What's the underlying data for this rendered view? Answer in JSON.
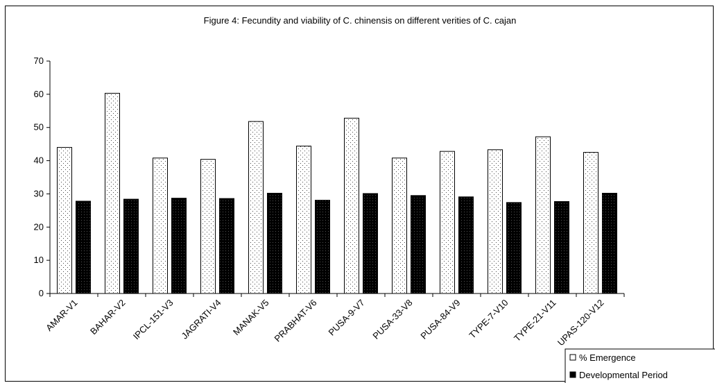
{
  "chart_data": {
    "type": "bar",
    "title": "Figure 4: Fecundity and viability of C. chinensis on different verities of C. cajan",
    "xlabel": "",
    "ylabel": "",
    "ylim": [
      0,
      70
    ],
    "yticks": [
      0,
      10,
      20,
      30,
      40,
      50,
      60,
      70
    ],
    "grid": false,
    "legend_placement": "bottom-right",
    "categories": [
      "AMAR-V1",
      "BAHAR-V2",
      "IPCL-151-V3",
      "JAGRATI-V4",
      "MANAK-V5",
      "PRABHAT-V6",
      "PUSA-9-V7",
      "PUSA-33-V8",
      "PUSA-84-V9",
      "TYPE-7-V10",
      "TYPE-21-V11",
      "UPAS-120-V12"
    ],
    "series": [
      {
        "name": "% Emergence",
        "color": "#ffffff",
        "pattern": "dotted",
        "values": [
          44,
          60.3,
          40.8,
          40.4,
          51.8,
          44.4,
          52.8,
          40.8,
          42.8,
          43.3,
          47.2,
          42.5
        ]
      },
      {
        "name": "Developmental Period",
        "color": "#000000",
        "pattern": "solid-dark",
        "values": [
          27.8,
          28.4,
          28.7,
          28.6,
          30.2,
          28.1,
          30.1,
          29.5,
          29.1,
          27.4,
          27.7,
          30.2
        ]
      }
    ]
  }
}
